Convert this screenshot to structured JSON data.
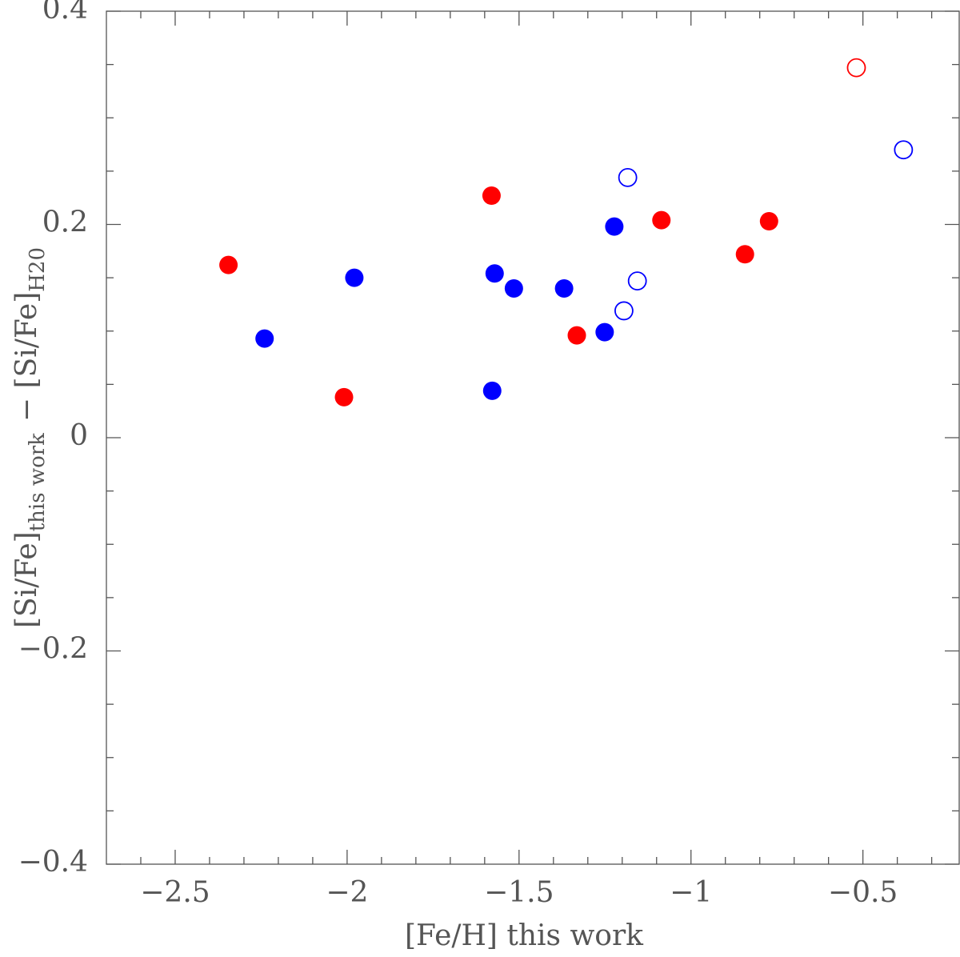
{
  "chart_data": {
    "type": "scatter",
    "xlabel": "[Fe/H] this work",
    "ylabel": {
      "main": "[Si/Fe]",
      "sub": "this work",
      "minus": "− [Si/Fe]",
      "sub2": "H20"
    },
    "xlim": [
      -2.7,
      -0.22
    ],
    "ylim": [
      -0.4,
      0.4
    ],
    "xticks": [
      {
        "value": -2.5,
        "label": "−2.5"
      },
      {
        "value": -2,
        "label": "−2"
      },
      {
        "value": -1.5,
        "label": "−1.5"
      },
      {
        "value": -1,
        "label": "−1"
      },
      {
        "value": -0.5,
        "label": "−0.5"
      }
    ],
    "xminorticks": [
      -2.6,
      -2.4,
      -2.3,
      -2.2,
      -2.1,
      -1.9,
      -1.8,
      -1.7,
      -1.6,
      -1.4,
      -1.3,
      -1.2,
      -1.1,
      -0.9,
      -0.8,
      -0.7,
      -0.6,
      -0.4,
      -0.3
    ],
    "yticks": [
      0.4,
      0.2,
      0,
      {
        "value": -0.2,
        "label": "−0.2"
      },
      {
        "value": -0.4,
        "label": "−0.4"
      }
    ],
    "yminorticks": [
      0.35,
      0.3,
      0.25,
      0.15,
      0.1,
      0.05,
      -0.05,
      -0.1,
      -0.15,
      -0.25,
      -0.3,
      -0.35
    ],
    "series": [
      {
        "color": "#ff0000",
        "filled": true,
        "x": [
          -2.345,
          -2.009,
          -1.58,
          -1.332,
          -1.086,
          -0.843,
          -0.773
        ],
        "values": [
          0.162,
          0.038,
          0.227,
          0.096,
          0.204,
          0.172,
          0.203
        ]
      },
      {
        "color": "#ff0000",
        "filled": false,
        "x": [
          -0.519
        ],
        "values": [
          0.347
        ]
      },
      {
        "color": "#0000ff",
        "filled": true,
        "x": [
          -2.24,
          -1.979,
          -1.578,
          -1.571,
          -1.515,
          -1.369,
          -1.251,
          -1.223
        ],
        "values": [
          0.093,
          0.15,
          0.044,
          0.154,
          0.14,
          0.14,
          0.099,
          0.198
        ]
      },
      {
        "color": "#0000ff",
        "filled": false,
        "x": [
          -1.184,
          -1.195,
          -1.156,
          -0.382
        ],
        "values": [
          0.244,
          0.119,
          0.147,
          0.27
        ]
      }
    ]
  }
}
